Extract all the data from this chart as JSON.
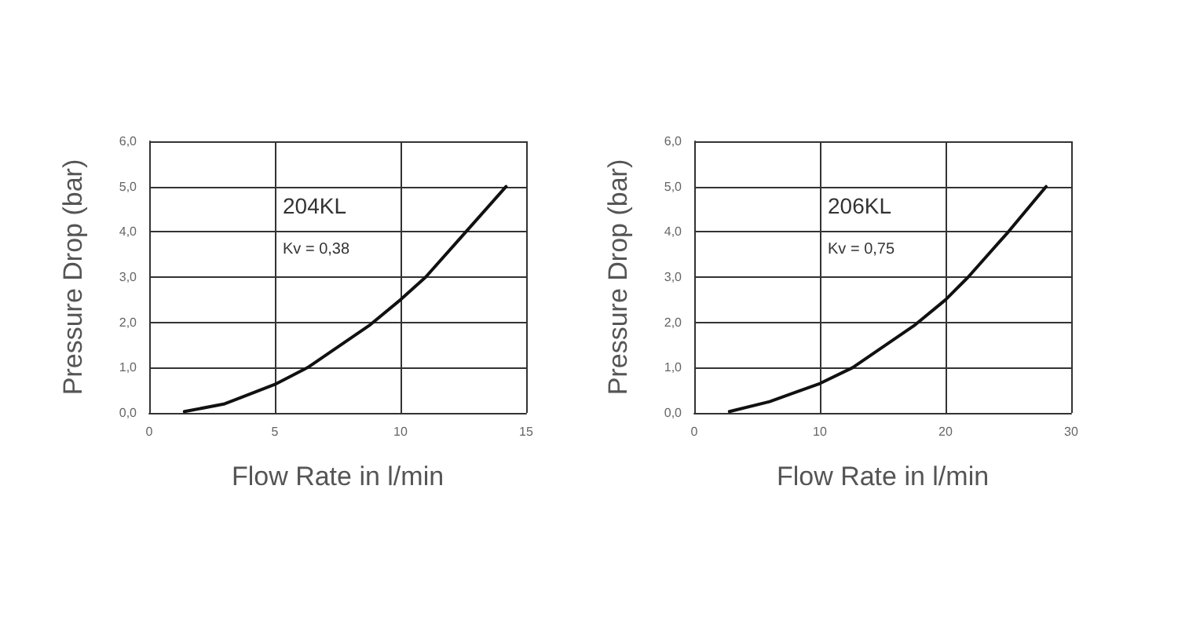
{
  "chart_data": [
    {
      "type": "line",
      "xlabel": "Flow Rate in l/min",
      "ylabel": "Pressure Drop (bar)",
      "annotations": [
        "204KL",
        "Kv = 0,38"
      ],
      "x": [
        1.4,
        3,
        5,
        6.3,
        8.8,
        10,
        11,
        12.6,
        14.2
      ],
      "series": [
        {
          "color": "#111111",
          "values": [
            0.03,
            0.2,
            0.63,
            1.0,
            1.95,
            2.5,
            3.0,
            4.0,
            5.0
          ]
        }
      ],
      "xlim": [
        0,
        15
      ],
      "xticks": [
        0,
        5,
        10,
        15
      ],
      "ylim": [
        0,
        6
      ],
      "yticks": [
        {
          "value": 0,
          "label": "0,0"
        },
        {
          "value": 1,
          "label": "1,0"
        },
        {
          "value": 2,
          "label": "2,0"
        },
        {
          "value": 3,
          "label": "3,0"
        },
        {
          "value": 4,
          "label": "4,0"
        },
        {
          "value": 5,
          "label": "5,0"
        },
        {
          "value": 6,
          "label": "6,0"
        }
      ],
      "grid": true,
      "marker": "none",
      "line_style": "solid"
    },
    {
      "type": "line",
      "xlabel": "Flow Rate in l/min",
      "ylabel": "Pressure Drop (bar)",
      "annotations": [
        "206KL",
        "Kv = 0,75"
      ],
      "x": [
        2.8,
        6,
        10,
        12.6,
        17.6,
        20,
        21.8,
        25,
        28
      ],
      "series": [
        {
          "color": "#111111",
          "values": [
            0.03,
            0.25,
            0.65,
            1.0,
            1.95,
            2.5,
            3.0,
            4.0,
            5.0
          ]
        }
      ],
      "xlim": [
        0,
        30
      ],
      "xticks": [
        0,
        10,
        20,
        30
      ],
      "ylim": [
        0,
        6
      ],
      "yticks": [
        {
          "value": 0,
          "label": "0,0"
        },
        {
          "value": 1,
          "label": "1,0"
        },
        {
          "value": 2,
          "label": "2,0"
        },
        {
          "value": 3,
          "label": "3,0"
        },
        {
          "value": 4,
          "label": "4,0"
        },
        {
          "value": 5,
          "label": "5,0"
        },
        {
          "value": 6,
          "label": "6,0"
        }
      ],
      "grid": true,
      "marker": "none",
      "line_style": "solid"
    }
  ]
}
